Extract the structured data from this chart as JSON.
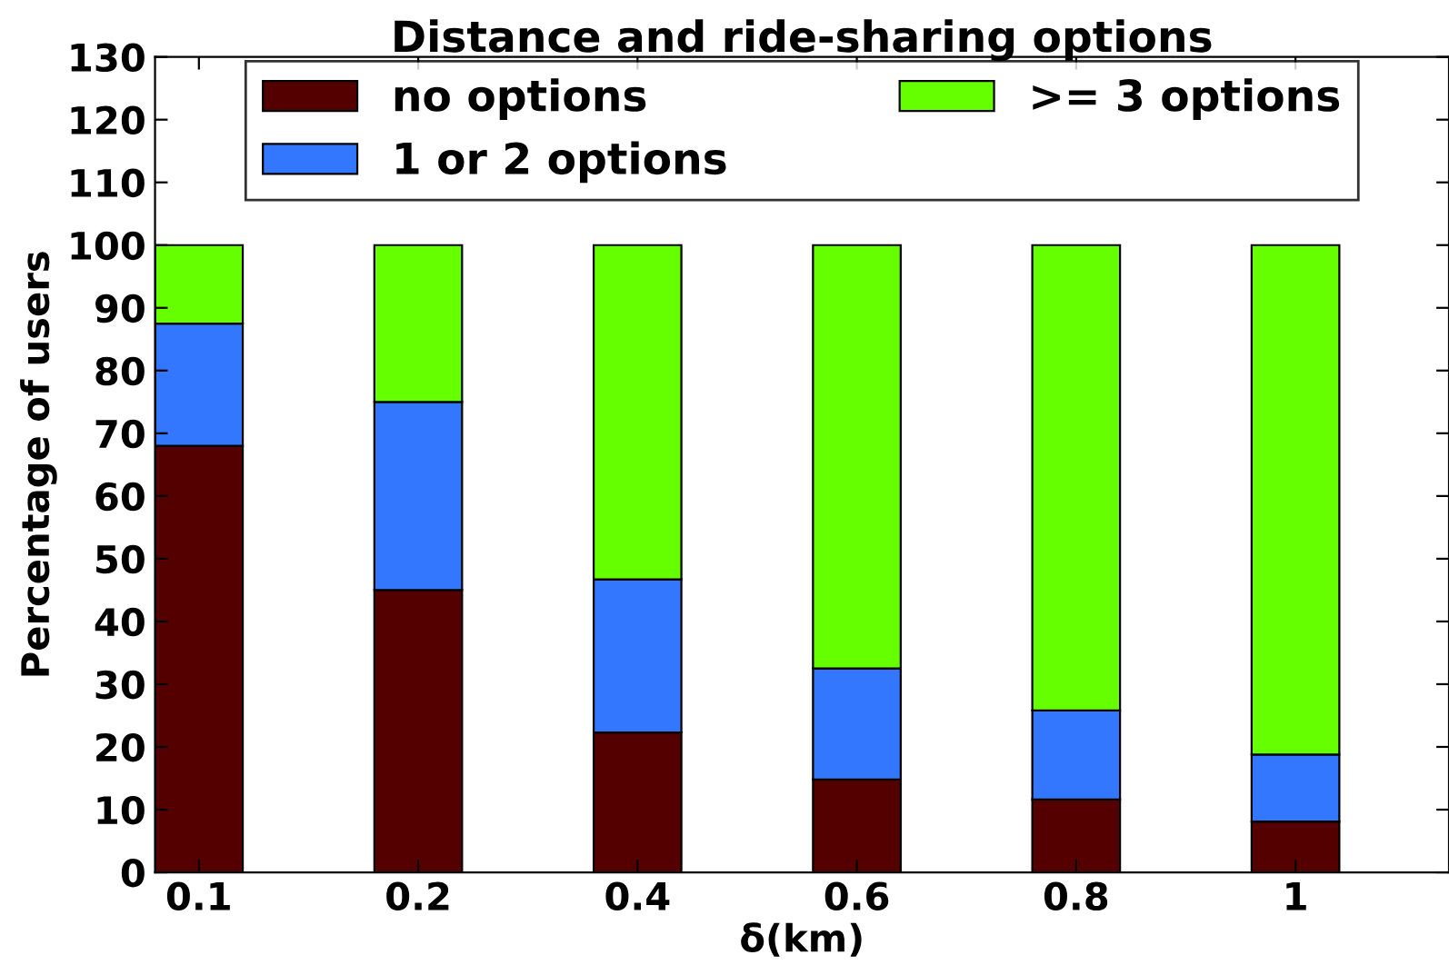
{
  "chart_data": {
    "type": "bar",
    "title": "Distance and ride-sharing options",
    "xlabel": "δ(km)",
    "ylabel": "Percentage of users",
    "categories": [
      "0.1",
      "0.2",
      "0.4",
      "0.6",
      "0.8",
      "1"
    ],
    "stacked": true,
    "series": [
      {
        "name": "no options",
        "color": "#550000",
        "values": [
          68,
          45,
          22.3,
          14.8,
          11.6,
          8.1
        ]
      },
      {
        "name": "1 or 2 options",
        "color": "#3377ff",
        "values": [
          19.5,
          30,
          24.4,
          17.7,
          14.2,
          10.7
        ]
      },
      {
        "name": ">= 3 options",
        "color": "#66ff00",
        "values": [
          12.5,
          25,
          53.3,
          67.5,
          74.2,
          81.2
        ]
      }
    ],
    "ylim": [
      0,
      130
    ],
    "yticks": [
      0,
      10,
      20,
      30,
      40,
      50,
      60,
      70,
      80,
      90,
      100,
      110,
      120,
      130
    ],
    "legend": "top",
    "grid": false
  }
}
